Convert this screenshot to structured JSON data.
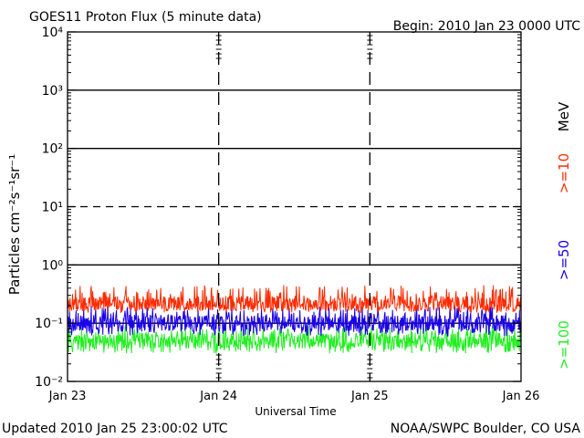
{
  "header": {
    "title": "GOES11 Proton Flux (5 minute data)",
    "begin": "Begin: 2010 Jan 23 0000 UTC"
  },
  "footer": {
    "updated": "Updated 2010 Jan 25 23:00:02 UTC",
    "credit": "NOAA/SWPC Boulder, CO USA"
  },
  "colors": {
    "ge10": "#ff2a00",
    "ge50": "#1a00e6",
    "ge100": "#22ee22",
    "axis": "#000000"
  },
  "chart_data": {
    "type": "line",
    "title": "GOES11 Proton Flux (5 minute data)",
    "xlabel": "Universal Time",
    "ylabel": "Particles cm⁻²s⁻¹sr⁻¹",
    "yscale": "log",
    "ylim": [
      0.01,
      10000
    ],
    "xlim": [
      "2010-01-23 00:00",
      "2010-01-26 00:00"
    ],
    "xticks": [
      "Jan 23",
      "Jan 24",
      "Jan 25",
      "Jan 26"
    ],
    "yticks": [
      {
        "value": 0.01,
        "label": "10⁻²"
      },
      {
        "value": 0.1,
        "label": "10⁻¹"
      },
      {
        "value": 1,
        "label": "10⁰"
      },
      {
        "value": 10,
        "label": "10¹"
      },
      {
        "value": 100,
        "label": "10²"
      },
      {
        "value": 1000,
        "label": "10³"
      },
      {
        "value": 10000,
        "label": "10⁴"
      }
    ],
    "reference_lines": [
      {
        "value": 1000,
        "style": "solid"
      },
      {
        "value": 100,
        "style": "solid"
      },
      {
        "value": 10,
        "style": "dashed"
      },
      {
        "value": 1,
        "style": "solid"
      },
      {
        "value": 0.1,
        "style": "solid"
      }
    ],
    "energy_unit": "MeV",
    "series": [
      {
        "name": ">=10",
        "color": "#ff2a00",
        "typical": 0.22,
        "low": 0.15,
        "high": 0.45
      },
      {
        "name": ">=50",
        "color": "#1a00e6",
        "typical": 0.1,
        "low": 0.06,
        "high": 0.2
      },
      {
        "name": ">=100",
        "color": "#22ee22",
        "typical": 0.05,
        "low": 0.03,
        "high": 0.09
      }
    ],
    "grid": false,
    "legend": "right-vertical"
  }
}
